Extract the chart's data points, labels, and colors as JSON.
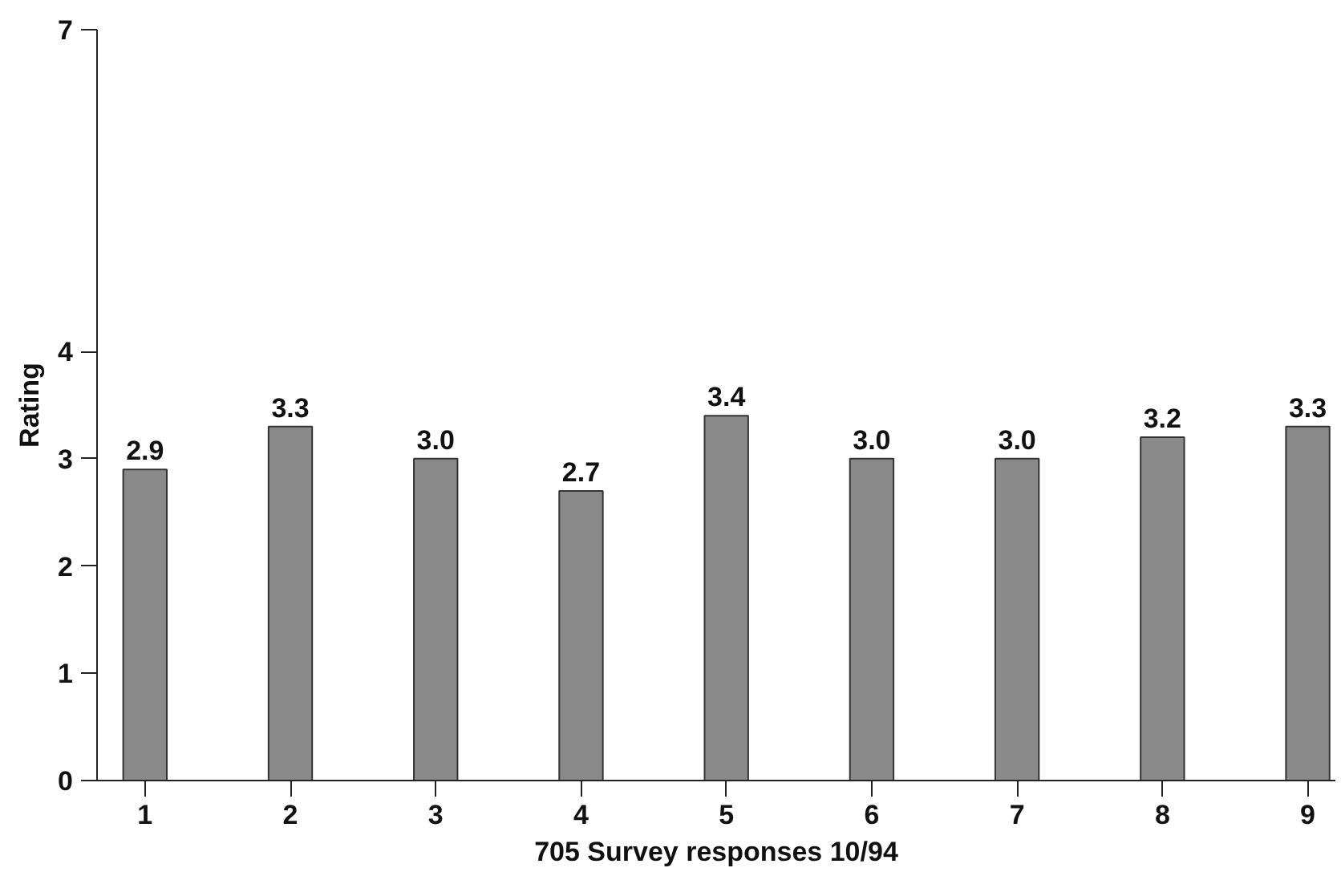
{
  "chart_data": {
    "type": "bar",
    "xlabel": "705 Survey responses 10/94",
    "ylabel": "Rating",
    "categories": [
      "1",
      "2",
      "3",
      "4",
      "5",
      "6",
      "7",
      "8",
      "9"
    ],
    "values": [
      2.9,
      3.3,
      3.0,
      2.7,
      3.4,
      3.0,
      3.0,
      3.2,
      3.3
    ],
    "value_labels": [
      "2.9",
      "3.3",
      "3.0",
      "2.7",
      "3.4",
      "3.0",
      "3.0",
      "3.2",
      "3.3"
    ],
    "color": "#8a8a8a",
    "ylim": [
      0,
      7
    ],
    "yticks": [
      0,
      1,
      2,
      3,
      4,
      7
    ],
    "grid": false
  }
}
